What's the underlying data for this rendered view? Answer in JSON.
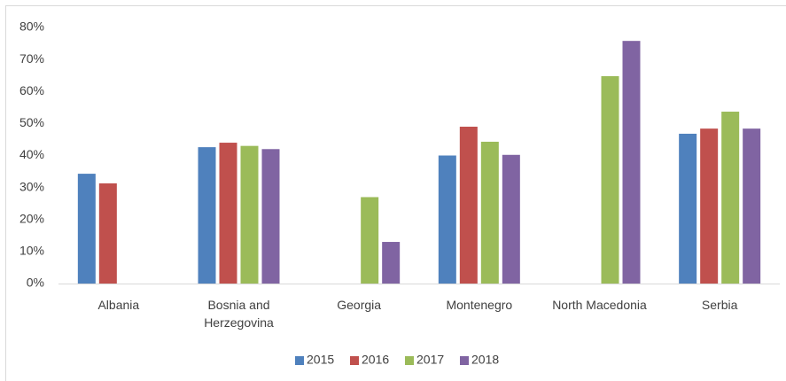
{
  "chart_data": {
    "type": "bar",
    "categories": [
      "Albania",
      "Bosnia and Herzegovina",
      "Georgia",
      "Montenegro",
      "North Macedonia",
      "Serbia"
    ],
    "series": [
      {
        "name": "2015",
        "color": "#4f81bd",
        "values": [
          34.3,
          42.6,
          null,
          40,
          null,
          46.8
        ]
      },
      {
        "name": "2016",
        "color": "#c0504d",
        "values": [
          31.3,
          44,
          null,
          49,
          null,
          48.4
        ]
      },
      {
        "name": "2017",
        "color": "#9bbb59",
        "values": [
          null,
          43,
          27,
          44.3,
          64.8,
          53.7
        ]
      },
      {
        "name": "2018",
        "color": "#8064a2",
        "values": [
          null,
          42,
          13,
          40.2,
          75.8,
          48.4
        ]
      }
    ],
    "ylim": [
      0,
      80
    ],
    "yticks": [
      {
        "value": 0,
        "label": "0%"
      },
      {
        "value": 10,
        "label": "10%"
      },
      {
        "value": 20,
        "label": "20%"
      },
      {
        "value": 30,
        "label": "30%"
      },
      {
        "value": 40,
        "label": "40%"
      },
      {
        "value": 50,
        "label": "50%"
      },
      {
        "value": 60,
        "label": "60%"
      },
      {
        "value": 70,
        "label": "70%"
      },
      {
        "value": 80,
        "label": "80%"
      }
    ],
    "grid": false,
    "legend": "bottom"
  }
}
